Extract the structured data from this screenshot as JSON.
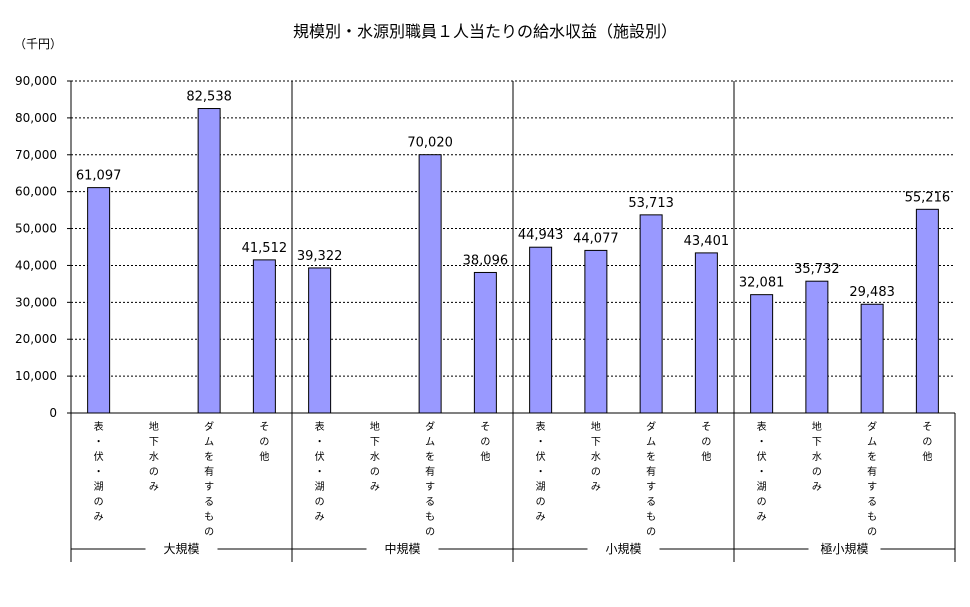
{
  "chart_data": {
    "type": "bar",
    "title": "規模別・水源別職員１人当たりの給水収益（施設別）",
    "unit_label": "（千円）",
    "ylim": [
      0,
      90000
    ],
    "y_ticks": [
      "0",
      "10,000",
      "20,000",
      "30,000",
      "40,000",
      "50,000",
      "60,000",
      "70,000",
      "80,000",
      "90,000"
    ],
    "grid": "dashed horizontal",
    "bar_color": "#9999FF",
    "groups": [
      {
        "name": "大規模",
        "categories": [
          {
            "label": "表・伏・湖のみ",
            "value": 61097,
            "value_label": "61,097"
          },
          {
            "label": "地下水のみ",
            "value": null,
            "value_label": ""
          },
          {
            "label": "ダムを有するもの",
            "value": 82538,
            "value_label": "82,538"
          },
          {
            "label": "その他",
            "value": 41512,
            "value_label": "41,512"
          }
        ]
      },
      {
        "name": "中規模",
        "categories": [
          {
            "label": "表・伏・湖のみ",
            "value": 39322,
            "value_label": "39,322"
          },
          {
            "label": "地下水のみ",
            "value": null,
            "value_label": ""
          },
          {
            "label": "ダムを有するもの",
            "value": 70020,
            "value_label": "70,020"
          },
          {
            "label": "その他",
            "value": 38096,
            "value_label": "38,096"
          }
        ]
      },
      {
        "name": "小規模",
        "categories": [
          {
            "label": "表・伏・湖のみ",
            "value": 44943,
            "value_label": "44,943"
          },
          {
            "label": "地下水のみ",
            "value": 44077,
            "value_label": "44,077"
          },
          {
            "label": "ダムを有するもの",
            "value": 53713,
            "value_label": "53,713"
          },
          {
            "label": "その他",
            "value": 43401,
            "value_label": "43,401"
          }
        ]
      },
      {
        "name": "極小規模",
        "categories": [
          {
            "label": "表・伏・湖のみ",
            "value": 32081,
            "value_label": "32,081"
          },
          {
            "label": "地下水のみ",
            "value": 35732,
            "value_label": "35,732"
          },
          {
            "label": "ダムを有するもの",
            "value": 29483,
            "value_label": "29,483"
          },
          {
            "label": "その他",
            "value": 55216,
            "value_label": "55,216"
          }
        ]
      }
    ]
  }
}
